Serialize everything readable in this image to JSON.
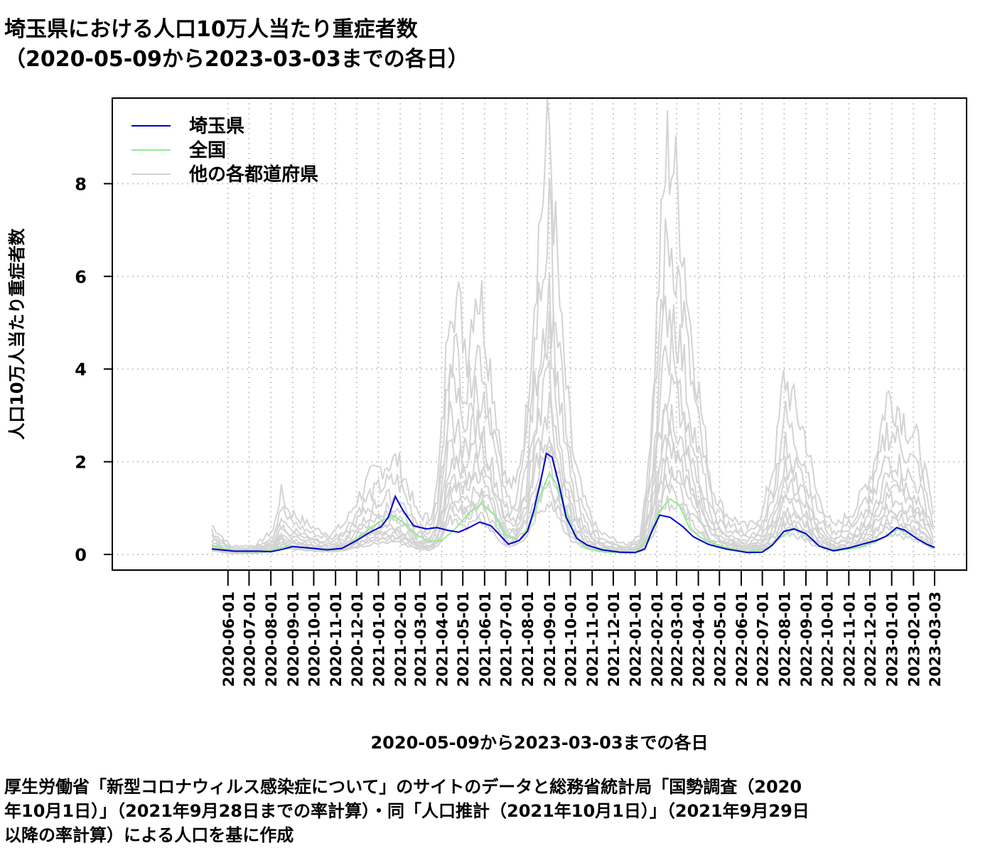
{
  "title": {
    "line1": "埼玉県における人口10万人当たり重症者数",
    "line2": "（2020-05-09から2023-03-03までの各日）"
  },
  "caption": {
    "line1": "厚生労働省「新型コロナウィルス感染症について」のサイトのデータと総務省統計局「国勢調査（2020",
    "line2": "年10月1日）」（2021年9月28日までの率計算）・同「人口推計（2021年10月1日）」（2021年9月29日",
    "line3": "以降の率計算）による人口を基に作成"
  },
  "chart_data": {
    "type": "line",
    "xlabel": "2020-05-09から2023-03-03までの各日",
    "ylabel": "人口10万人当たり重症者数",
    "x_range": [
      "2020-05-09",
      "2023-03-03"
    ],
    "ylim": [
      0,
      9.6
    ],
    "yticks": [
      0,
      2,
      4,
      6,
      8
    ],
    "xticks": [
      "2020-06-01",
      "2020-07-01",
      "2020-08-01",
      "2020-09-01",
      "2020-10-01",
      "2020-11-01",
      "2020-12-01",
      "2021-01-01",
      "2021-02-01",
      "2021-03-01",
      "2021-04-01",
      "2021-05-01",
      "2021-06-01",
      "2021-07-01",
      "2021-08-01",
      "2021-09-01",
      "2021-10-01",
      "2021-11-01",
      "2021-12-01",
      "2022-01-01",
      "2022-02-01",
      "2022-03-01",
      "2022-04-01",
      "2022-05-01",
      "2022-06-01",
      "2022-07-01",
      "2022-08-01",
      "2022-09-01",
      "2022-10-01",
      "2022-11-01",
      "2022-12-01",
      "2023-01-01",
      "2023-02-01",
      "2023-03-03"
    ],
    "grid": true,
    "legend_position": "top-left",
    "series": [
      {
        "name": "埼玉県",
        "color": "#0000cc",
        "points": [
          [
            "2020-05-09",
            0.12
          ],
          [
            "2020-06-10",
            0.07
          ],
          [
            "2020-07-15",
            0.07
          ],
          [
            "2020-08-01",
            0.06
          ],
          [
            "2020-08-20",
            0.12
          ],
          [
            "2020-09-01",
            0.17
          ],
          [
            "2020-09-25",
            0.14
          ],
          [
            "2020-10-20",
            0.1
          ],
          [
            "2020-11-10",
            0.13
          ],
          [
            "2020-12-01",
            0.3
          ],
          [
            "2020-12-20",
            0.48
          ],
          [
            "2021-01-05",
            0.6
          ],
          [
            "2021-01-15",
            0.8
          ],
          [
            "2021-01-25",
            1.25
          ],
          [
            "2021-02-05",
            0.95
          ],
          [
            "2021-02-20",
            0.62
          ],
          [
            "2021-03-10",
            0.55
          ],
          [
            "2021-03-25",
            0.58
          ],
          [
            "2021-04-10",
            0.52
          ],
          [
            "2021-04-25",
            0.48
          ],
          [
            "2021-05-10",
            0.58
          ],
          [
            "2021-05-25",
            0.7
          ],
          [
            "2021-06-10",
            0.62
          ],
          [
            "2021-06-25",
            0.38
          ],
          [
            "2021-07-05",
            0.22
          ],
          [
            "2021-07-20",
            0.3
          ],
          [
            "2021-08-01",
            0.5
          ],
          [
            "2021-08-10",
            0.95
          ],
          [
            "2021-08-20",
            1.6
          ],
          [
            "2021-08-28",
            2.18
          ],
          [
            "2021-09-05",
            2.1
          ],
          [
            "2021-09-15",
            1.5
          ],
          [
            "2021-09-25",
            0.8
          ],
          [
            "2021-10-10",
            0.35
          ],
          [
            "2021-10-25",
            0.2
          ],
          [
            "2021-11-15",
            0.1
          ],
          [
            "2021-12-10",
            0.05
          ],
          [
            "2022-01-01",
            0.04
          ],
          [
            "2022-01-15",
            0.12
          ],
          [
            "2022-01-25",
            0.5
          ],
          [
            "2022-02-05",
            0.85
          ],
          [
            "2022-02-20",
            0.8
          ],
          [
            "2022-03-10",
            0.6
          ],
          [
            "2022-03-25",
            0.38
          ],
          [
            "2022-04-15",
            0.22
          ],
          [
            "2022-05-10",
            0.12
          ],
          [
            "2022-06-10",
            0.04
          ],
          [
            "2022-07-01",
            0.05
          ],
          [
            "2022-07-15",
            0.2
          ],
          [
            "2022-08-01",
            0.5
          ],
          [
            "2022-08-15",
            0.55
          ],
          [
            "2022-09-01",
            0.45
          ],
          [
            "2022-09-20",
            0.18
          ],
          [
            "2022-10-10",
            0.08
          ],
          [
            "2022-11-01",
            0.14
          ],
          [
            "2022-11-20",
            0.22
          ],
          [
            "2022-12-10",
            0.3
          ],
          [
            "2022-12-25",
            0.4
          ],
          [
            "2023-01-08",
            0.58
          ],
          [
            "2023-01-20",
            0.52
          ],
          [
            "2023-02-05",
            0.35
          ],
          [
            "2023-02-20",
            0.22
          ],
          [
            "2023-03-03",
            0.15
          ]
        ]
      },
      {
        "name": "全国",
        "color": "#90ee90",
        "points": [
          [
            "2020-05-09",
            0.2
          ],
          [
            "2020-06-10",
            0.07
          ],
          [
            "2020-07-15",
            0.05
          ],
          [
            "2020-08-05",
            0.1
          ],
          [
            "2020-08-25",
            0.18
          ],
          [
            "2020-09-20",
            0.14
          ],
          [
            "2020-10-20",
            0.1
          ],
          [
            "2020-11-15",
            0.16
          ],
          [
            "2020-12-05",
            0.38
          ],
          [
            "2020-12-25",
            0.62
          ],
          [
            "2021-01-20",
            0.85
          ],
          [
            "2021-02-05",
            0.7
          ],
          [
            "2021-02-25",
            0.42
          ],
          [
            "2021-03-15",
            0.28
          ],
          [
            "2021-04-01",
            0.3
          ],
          [
            "2021-04-20",
            0.55
          ],
          [
            "2021-05-10",
            0.9
          ],
          [
            "2021-05-28",
            1.1
          ],
          [
            "2021-06-15",
            0.85
          ],
          [
            "2021-07-01",
            0.42
          ],
          [
            "2021-07-20",
            0.3
          ],
          [
            "2021-08-05",
            0.65
          ],
          [
            "2021-08-20",
            1.3
          ],
          [
            "2021-09-01",
            1.75
          ],
          [
            "2021-09-10",
            1.55
          ],
          [
            "2021-09-25",
            0.9
          ],
          [
            "2021-10-10",
            0.35
          ],
          [
            "2021-10-25",
            0.12
          ],
          [
            "2021-11-20",
            0.05
          ],
          [
            "2022-01-01",
            0.04
          ],
          [
            "2022-01-20",
            0.35
          ],
          [
            "2022-02-05",
            0.95
          ],
          [
            "2022-02-20",
            1.2
          ],
          [
            "2022-03-05",
            1.05
          ],
          [
            "2022-03-20",
            0.55
          ],
          [
            "2022-04-10",
            0.3
          ],
          [
            "2022-05-10",
            0.15
          ],
          [
            "2022-06-10",
            0.06
          ],
          [
            "2022-07-10",
            0.12
          ],
          [
            "2022-07-25",
            0.35
          ],
          [
            "2022-08-15",
            0.55
          ],
          [
            "2022-09-01",
            0.42
          ],
          [
            "2022-09-20",
            0.18
          ],
          [
            "2022-10-15",
            0.08
          ],
          [
            "2022-11-15",
            0.15
          ],
          [
            "2022-12-10",
            0.28
          ],
          [
            "2023-01-10",
            0.55
          ],
          [
            "2023-01-25",
            0.45
          ],
          [
            "2023-02-15",
            0.25
          ],
          [
            "2023-03-03",
            0.14
          ]
        ]
      },
      {
        "name": "他の各都道府県",
        "color": "#d3d3d3",
        "bands": [
          [
            [
              "2020-05-09",
              0.65
            ],
            [
              "2020-06-05",
              0.18
            ],
            [
              "2020-07-10",
              0.2
            ],
            [
              "2020-08-05",
              0.55
            ],
            [
              "2020-08-15",
              1.4
            ],
            [
              "2020-08-25",
              1.0
            ],
            [
              "2020-09-10",
              0.8
            ],
            [
              "2020-10-05",
              0.55
            ],
            [
              "2020-10-25",
              0.45
            ],
            [
              "2020-11-15",
              0.7
            ],
            [
              "2020-12-01",
              1.2
            ],
            [
              "2020-12-20",
              1.7
            ],
            [
              "2021-01-10",
              2.0
            ],
            [
              "2021-01-28",
              2.1
            ],
            [
              "2021-02-10",
              1.6
            ],
            [
              "2021-02-25",
              0.9
            ],
            [
              "2021-03-15",
              0.8
            ],
            [
              "2021-03-25",
              1.4
            ],
            [
              "2021-04-05",
              3.5
            ],
            [
              "2021-04-12",
              6.1
            ],
            [
              "2021-04-25",
              5.5
            ],
            [
              "2021-05-08",
              4.5
            ],
            [
              "2021-05-18",
              6.0
            ],
            [
              "2021-05-28",
              5.6
            ],
            [
              "2021-06-15",
              3.5
            ],
            [
              "2021-07-01",
              1.6
            ],
            [
              "2021-07-15",
              1.5
            ],
            [
              "2021-07-30",
              3.0
            ],
            [
              "2021-08-15",
              6.8
            ],
            [
              "2021-08-25",
              8.4
            ],
            [
              "2021-09-01",
              9.5
            ],
            [
              "2021-09-08",
              7.5
            ],
            [
              "2021-09-20",
              4.5
            ],
            [
              "2021-10-05",
              2.2
            ],
            [
              "2021-10-20",
              1.2
            ],
            [
              "2021-11-10",
              0.5
            ],
            [
              "2021-12-20",
              0.2
            ],
            [
              "2022-01-10",
              0.5
            ],
            [
              "2022-01-25",
              3.0
            ],
            [
              "2022-02-05",
              6.5
            ],
            [
              "2022-02-15",
              9.0
            ],
            [
              "2022-02-25",
              8.7
            ],
            [
              "2022-03-10",
              7.0
            ],
            [
              "2022-03-20",
              5.2
            ],
            [
              "2022-04-05",
              3.2
            ],
            [
              "2022-04-20",
              1.5
            ],
            [
              "2022-05-10",
              0.9
            ],
            [
              "2022-06-10",
              0.6
            ],
            [
              "2022-07-01",
              0.9
            ],
            [
              "2022-07-20",
              2.2
            ],
            [
              "2022-08-01",
              4.0
            ],
            [
              "2022-08-15",
              3.3
            ],
            [
              "2022-09-01",
              2.6
            ],
            [
              "2022-09-15",
              1.4
            ],
            [
              "2022-10-10",
              0.6
            ],
            [
              "2022-11-10",
              1.0
            ],
            [
              "2022-12-05",
              1.9
            ],
            [
              "2022-12-25",
              3.5
            ],
            [
              "2023-01-10",
              3.3
            ],
            [
              "2023-01-25",
              2.8
            ],
            [
              "2023-02-10",
              2.4
            ],
            [
              "2023-02-25",
              1.2
            ],
            [
              "2023-03-03",
              0.7
            ]
          ]
        ]
      }
    ]
  }
}
